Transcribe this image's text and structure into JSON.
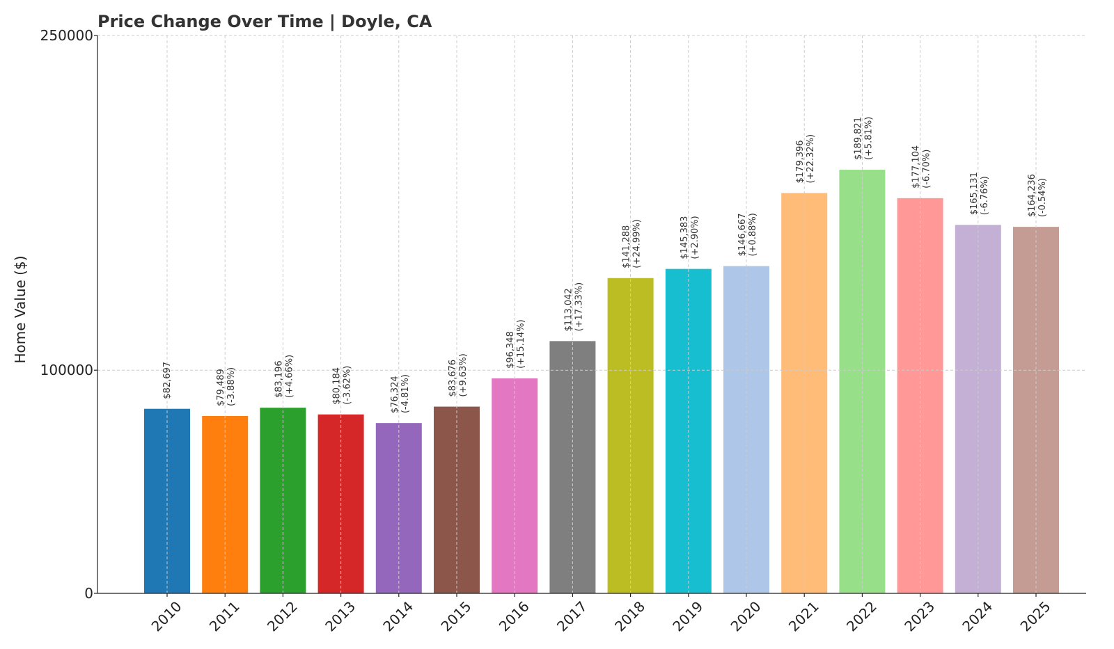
{
  "chart_data": {
    "type": "bar",
    "title": "Price Change Over Time | Doyle, CA",
    "xlabel": "",
    "ylabel": "Home Value ($)",
    "ylim": [
      0,
      250000
    ],
    "yticks": [
      "0",
      "100000",
      "250000"
    ],
    "ytick_values": [
      0,
      100000,
      250000
    ],
    "grid": true,
    "categories": [
      "2010",
      "2011",
      "2012",
      "2013",
      "2014",
      "2015",
      "2016",
      "2017",
      "2018",
      "2019",
      "2020",
      "2021",
      "2022",
      "2023",
      "2024",
      "2025"
    ],
    "values": [
      82697,
      79489,
      83196,
      80184,
      76324,
      83676,
      96348,
      113042,
      141288,
      145383,
      146667,
      179396,
      189821,
      177104,
      165131,
      164236
    ],
    "value_labels": [
      "$82,697",
      "$79,489",
      "$83,196",
      "$80,184",
      "$76,324",
      "$83,676",
      "$96,348",
      "$113,042",
      "$141,288",
      "$145,383",
      "$146,667",
      "$179,396",
      "$189,821",
      "$177,104",
      "$165,131",
      "$164,236"
    ],
    "change_labels": [
      "",
      "(-3.88%)",
      "(+4.66%)",
      "(-3.62%)",
      "(-4.81%)",
      "(+9.63%)",
      "(+15.14%)",
      "(+17.33%)",
      "(+24.99%)",
      "(+2.90%)",
      "(+0.88%)",
      "(+22.32%)",
      "(+5.81%)",
      "(-6.70%)",
      "(-6.76%)",
      "(-0.54%)"
    ],
    "colors": [
      "#1f77b4",
      "#ff7f0e",
      "#2ca02c",
      "#d62728",
      "#9467bd",
      "#8c564b",
      "#e377c2",
      "#7f7f7f",
      "#bcbd22",
      "#17becf",
      "#aec7e8",
      "#ffbb78",
      "#98df8a",
      "#ff9896",
      "#c5b0d5",
      "#c49c94"
    ]
  }
}
